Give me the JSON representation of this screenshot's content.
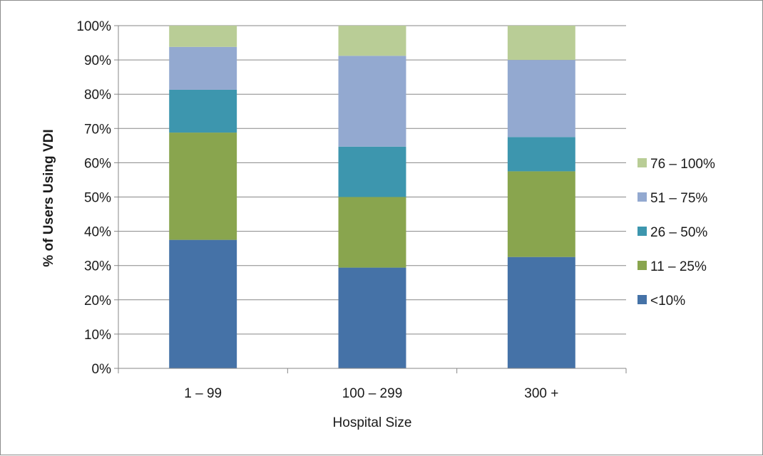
{
  "chart_data": {
    "type": "bar",
    "stacked": true,
    "categories": [
      "1 – 99",
      "100 – 299",
      "300 +"
    ],
    "series": [
      {
        "name": "<10%",
        "values": [
          37.5,
          29.4,
          32.5
        ],
        "color": "#4572A7"
      },
      {
        "name": "11 – 25%",
        "values": [
          31.3,
          20.6,
          25.0
        ],
        "color": "#89A54E"
      },
      {
        "name": "26 – 50%",
        "values": [
          12.5,
          14.7,
          10.0
        ],
        "color": "#3D96AE"
      },
      {
        "name": "51 – 75%",
        "values": [
          12.5,
          26.5,
          22.5
        ],
        "color": "#93A9D0"
      },
      {
        "name": "76 – 100%",
        "values": [
          6.2,
          8.8,
          10.0
        ],
        "color": "#B9CD96"
      }
    ],
    "xlabel": "Hospital Size",
    "ylabel": "% of Users Using VDI",
    "ylim": [
      0,
      100
    ],
    "ytick_labels": [
      "0%",
      "10%",
      "20%",
      "30%",
      "40%",
      "50%",
      "60%",
      "70%",
      "80%",
      "90%",
      "100%"
    ],
    "grid": true,
    "legend_position": "right"
  }
}
